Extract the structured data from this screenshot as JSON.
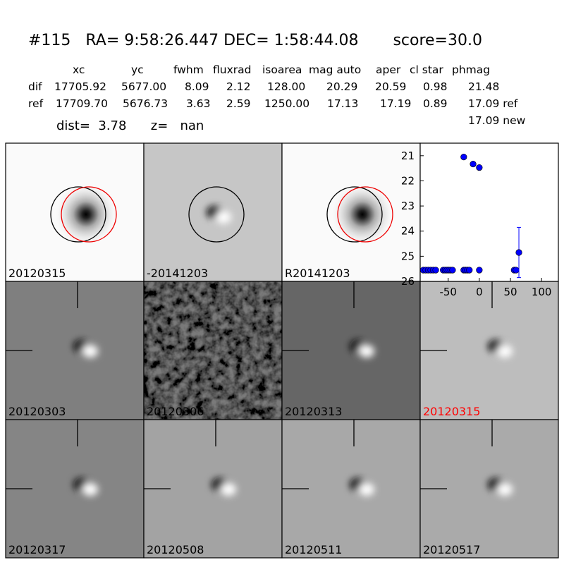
{
  "header": {
    "title": "#115   RA= 9:58:26.447 DEC= 1:58:44.08       score=30.0"
  },
  "table": {
    "columns": [
      "xc",
      "yc",
      "fwhm",
      "fluxrad",
      "isoarea",
      "mag auto",
      "aper",
      "cl star",
      "phmag"
    ],
    "rows": [
      {
        "label": "dif",
        "cells": [
          "17705.92",
          "5677.00",
          "8.09",
          "2.12",
          "128.00",
          "20.29",
          "20.59",
          "0.98",
          "21.48"
        ]
      },
      {
        "label": "ref",
        "cells": [
          "17709.70",
          "5676.73",
          "3.63",
          "2.59",
          "1250.00",
          "17.13",
          "17.19",
          "0.89",
          "17.09 ref"
        ]
      }
    ],
    "extra": "17.09 new",
    "dist_line": "dist=  3.78      z=   nan"
  },
  "panels": [
    {
      "label": "20120315"
    },
    {
      "label": "-20141203"
    },
    {
      "label": "R20141203"
    },
    {
      "label": "20120303"
    },
    {
      "label": "20120306"
    },
    {
      "label": "20120313"
    },
    {
      "label": "20120315",
      "label_color": "red"
    },
    {
      "label": "20120317"
    },
    {
      "label": "20120508"
    },
    {
      "label": "20120511"
    },
    {
      "label": "20120517"
    }
  ],
  "chart_data": {
    "type": "scatter",
    "color": "#0000ff",
    "x": [
      -90,
      -86,
      -82,
      -78,
      -74,
      -70,
      -58,
      -55,
      -52,
      -49,
      -46,
      -43,
      -25,
      -22,
      -19,
      -16,
      0,
      56,
      59,
      -25,
      -10,
      0,
      63.6
    ],
    "values": [
      25.55,
      25.55,
      25.55,
      25.55,
      25.55,
      25.55,
      25.55,
      25.55,
      25.55,
      25.55,
      25.55,
      25.55,
      25.55,
      25.55,
      25.55,
      25.55,
      25.55,
      25.55,
      25.55,
      21.05,
      21.33,
      21.47,
      24.85
    ],
    "errors": [
      null,
      null,
      null,
      null,
      null,
      null,
      null,
      null,
      null,
      null,
      null,
      null,
      null,
      null,
      null,
      null,
      null,
      null,
      null,
      null,
      null,
      0.08,
      1.0
    ],
    "xlim": [
      -95,
      127
    ],
    "ylim": [
      26,
      20.5
    ],
    "xticks": [
      -50,
      0,
      50,
      100
    ],
    "yticks": [
      21,
      22,
      23,
      24,
      25,
      26
    ]
  }
}
